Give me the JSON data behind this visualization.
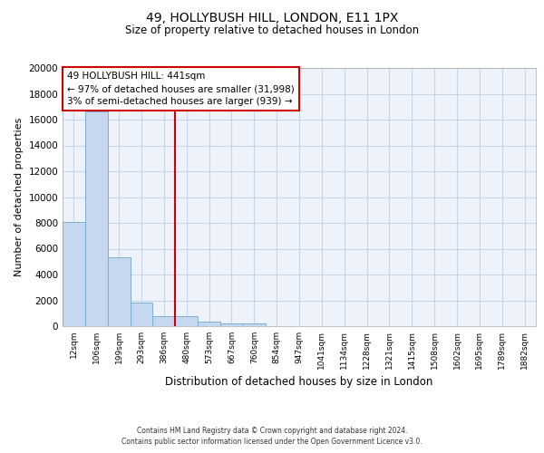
{
  "title": "49, HOLLYBUSH HILL, LONDON, E11 1PX",
  "subtitle": "Size of property relative to detached houses in London",
  "xlabel": "Distribution of detached houses by size in London",
  "ylabel": "Number of detached properties",
  "categories": [
    "12sqm",
    "106sqm",
    "199sqm",
    "293sqm",
    "386sqm",
    "480sqm",
    "573sqm",
    "667sqm",
    "760sqm",
    "854sqm",
    "947sqm",
    "1041sqm",
    "1134sqm",
    "1228sqm",
    "1321sqm",
    "1415sqm",
    "1508sqm",
    "1602sqm",
    "1695sqm",
    "1789sqm",
    "1882sqm"
  ],
  "values": [
    8100,
    16600,
    5300,
    1800,
    750,
    750,
    350,
    230,
    200,
    0,
    0,
    0,
    0,
    0,
    0,
    0,
    0,
    0,
    0,
    0,
    0
  ],
  "bar_color": "#c5d8f0",
  "bar_edge_color": "#7bafd4",
  "vline_x_index": 4.5,
  "vline_color": "#cc0000",
  "annotation_box_text": "49 HOLLYBUSH HILL: 441sqm\n← 97% of detached houses are smaller (31,998)\n3% of semi-detached houses are larger (939) →",
  "annotation_box_color": "#cc0000",
  "ylim": [
    0,
    20000
  ],
  "yticks": [
    0,
    2000,
    4000,
    6000,
    8000,
    10000,
    12000,
    14000,
    16000,
    18000,
    20000
  ],
  "grid_color": "#c8d4e8",
  "background_color": "#eef2fb",
  "footer_line1": "Contains HM Land Registry data © Crown copyright and database right 2024.",
  "footer_line2": "Contains public sector information licensed under the Open Government Licence v3.0."
}
